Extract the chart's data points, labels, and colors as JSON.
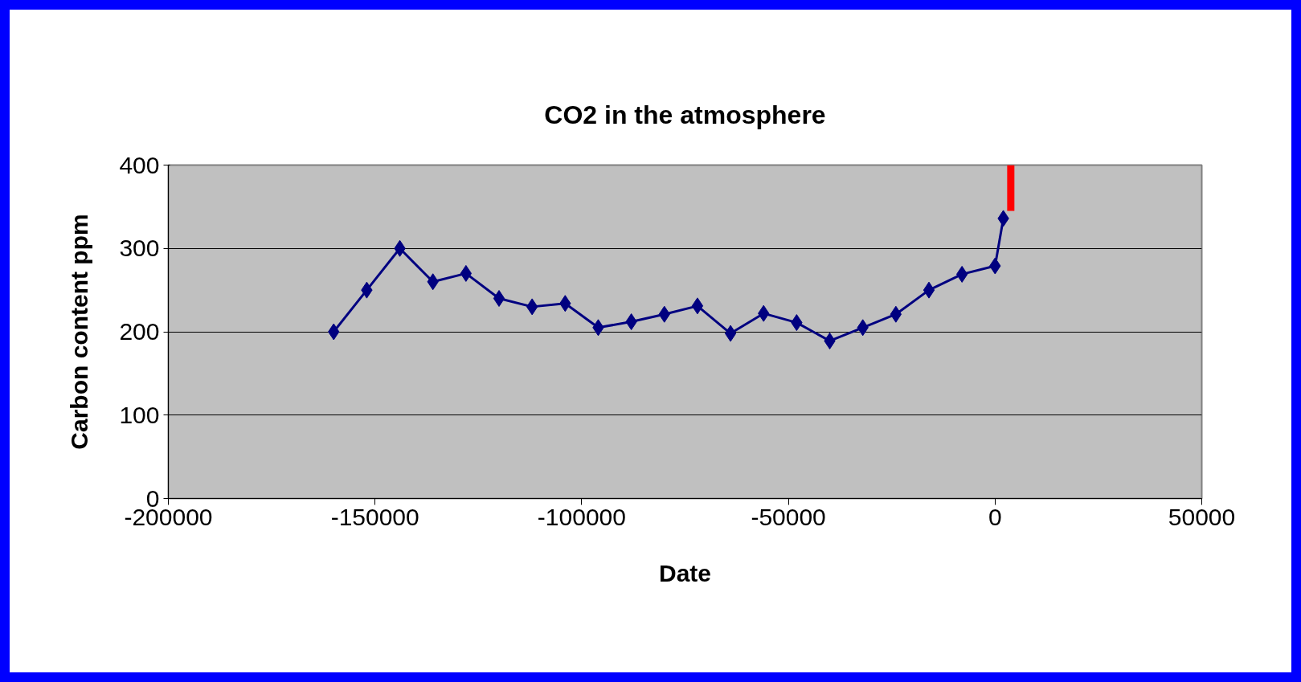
{
  "chart_data": {
    "type": "line",
    "title": "CO2 in the atmosphere",
    "xlabel": "Date",
    "ylabel": "Carbon content ppm",
    "xlim": [
      -200000,
      50000
    ],
    "xticks": [
      -200000,
      -150000,
      -100000,
      -50000,
      0,
      50000
    ],
    "ylim": [
      0,
      400
    ],
    "yticks": [
      0,
      100,
      200,
      300,
      400
    ],
    "grid": "y",
    "marker": "diamond",
    "series": [
      {
        "color": "#000080",
        "x": [
          -160000,
          -152000,
          -144000,
          -136000,
          -128000,
          -120000,
          -112000,
          -104000,
          -96000,
          -88000,
          -80000,
          -72000,
          -64000,
          -56000,
          -48000,
          -40000,
          -32000,
          -24000,
          -16000,
          -8000,
          0,
          2000
        ],
        "values": [
          200,
          250,
          300,
          260,
          270,
          240,
          230,
          234,
          205,
          212,
          221,
          231,
          198,
          222,
          211,
          189,
          205,
          221,
          250,
          269,
          279,
          336
        ]
      },
      {
        "color": "#ff0000",
        "marker": "none",
        "x": [
          3800,
          3800
        ],
        "values": [
          345,
          400
        ]
      }
    ]
  }
}
